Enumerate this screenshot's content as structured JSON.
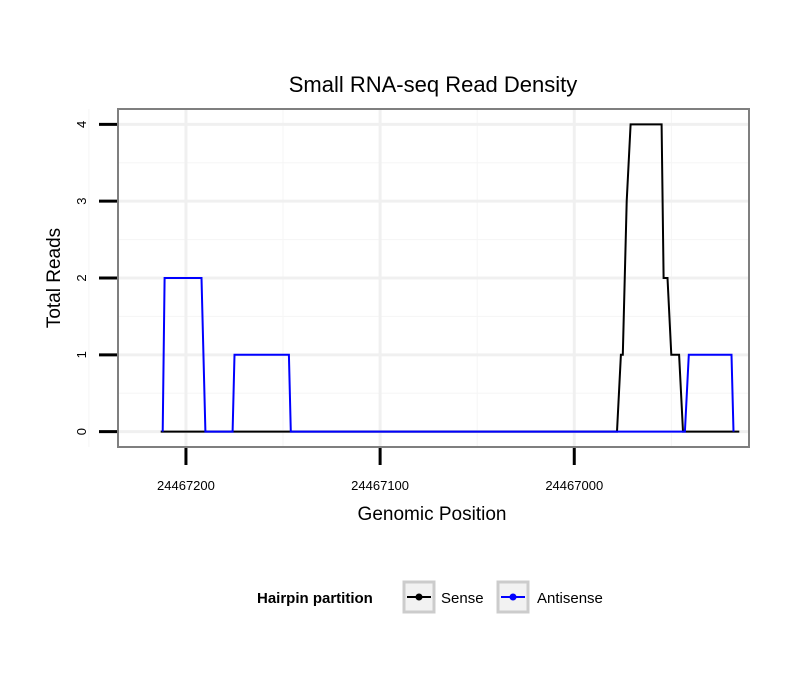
{
  "chart_data": {
    "type": "line",
    "title": "Small RNA-seq Read Density",
    "xlabel": "Genomic Position",
    "ylabel": "Total Reads",
    "x_reversed": true,
    "xlim": [
      24467235,
      24466910
    ],
    "ylim": [
      -0.2,
      4.2
    ],
    "x_ticks": [
      24467200,
      24467100,
      24467000
    ],
    "x_tick_labels": [
      "24467200",
      "24467100",
      "24467000"
    ],
    "y_ticks": [
      0,
      1,
      2,
      3,
      4
    ],
    "y_tick_labels": [
      "0",
      "1",
      "2",
      "3",
      "4"
    ],
    "grid": true,
    "legend": {
      "title": "Hairpin partition",
      "position": "bottom",
      "entries": [
        "Sense",
        "Antisense"
      ]
    },
    "series": [
      {
        "name": "Sense",
        "color": "#000000",
        "x": [
          24467213,
          24466978,
          24466976,
          24466975,
          24466973,
          24466971,
          24466955,
          24466954,
          24466952,
          24466950,
          24466946,
          24466944,
          24466915
        ],
        "y": [
          0,
          0,
          1,
          1,
          3,
          4,
          4,
          2,
          2,
          1,
          1,
          0,
          0
        ]
      },
      {
        "name": "Antisense",
        "color": "#0000ff",
        "x": [
          24467212,
          24467211,
          24467192,
          24467190,
          24467176,
          24467175,
          24467147,
          24467146,
          24466943,
          24466941,
          24466919,
          24466918
        ],
        "y": [
          0,
          2,
          2,
          0,
          0,
          1,
          1,
          0,
          0,
          1,
          1,
          0
        ]
      }
    ]
  }
}
